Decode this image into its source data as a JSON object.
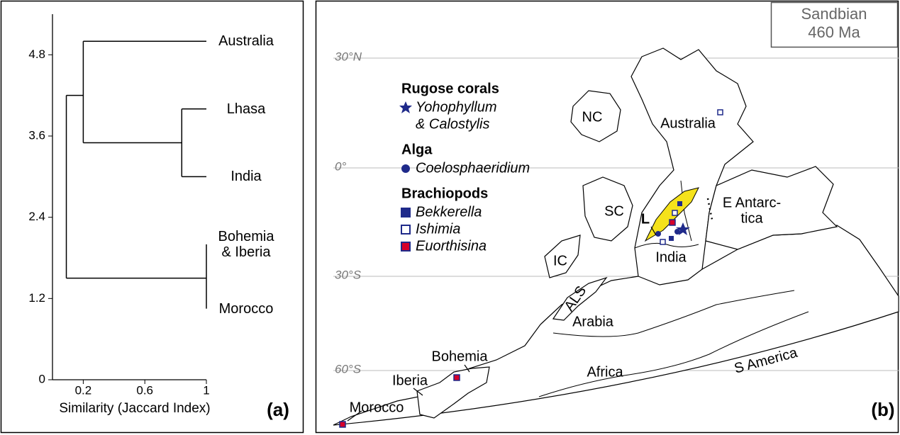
{
  "chart_data": {
    "type": "dendrogram",
    "panel_label": "(a)",
    "xlabel": "Similarity (Jaccard Index)",
    "xlim": [
      0,
      1
    ],
    "xticks": [
      0.2,
      0.6,
      1
    ],
    "ylim": [
      0,
      5.4
    ],
    "yticks": [
      0,
      1.2,
      2.4,
      3.6,
      4.8
    ],
    "color": "#000000",
    "tree": {
      "similarity": 0.09,
      "children": [
        {
          "similarity": 0.2,
          "y": 4.2,
          "children": [
            {
              "label": "Australia",
              "y": 5.0
            },
            {
              "similarity": 0.84,
              "y": 3.5,
              "children": [
                {
                  "label": "Lhasa",
                  "y": 4.0
                },
                {
                  "label": "India",
                  "y": 3.0
                }
              ]
            }
          ]
        },
        {
          "similarity": 1,
          "y": 1.5,
          "children": [
            {
              "label": "Bohemia\n& Iberia",
              "y": 2.0
            },
            {
              "label": "Morocco",
              "y": 1.05
            }
          ]
        }
      ]
    }
  },
  "map": {
    "panel_label": "(b)",
    "stage": "Sandbian",
    "age": "460 Ma",
    "latitudes": [
      "30°N",
      "0°",
      "30°S",
      "60°S"
    ],
    "legend": [
      {
        "group": "Rugose corals",
        "items": [
          {
            "symbol": "star",
            "color": "#1f2a8a",
            "lines": [
              "Yohophyllum",
              "& Calostylis"
            ]
          }
        ]
      },
      {
        "group": "Alga",
        "items": [
          {
            "symbol": "circle",
            "color": "#1f2a8a",
            "lines": [
              "Coelosphaeridium"
            ]
          }
        ]
      },
      {
        "group": "Brachiopods",
        "items": [
          {
            "symbol": "square",
            "color": "#1f2a8a",
            "lines": [
              "Bekkerella"
            ]
          },
          {
            "symbol": "open-square",
            "color": "#1f2a8a",
            "lines": [
              "Ishimia"
            ]
          },
          {
            "symbol": "red-square",
            "color": "#1f2a8a",
            "lines": [
              "Euorthisina"
            ]
          }
        ]
      }
    ],
    "places": [
      [
        "NC"
      ],
      [
        "Australia"
      ],
      [
        "SC"
      ],
      [
        "L"
      ],
      [
        "India"
      ],
      [
        "E Antarc-",
        "tica"
      ],
      [
        "IC"
      ],
      [
        "ALS"
      ],
      [
        "Arabia"
      ],
      [
        "Bohemia"
      ],
      [
        "Iberia"
      ],
      [
        "Africa"
      ],
      [
        "S America"
      ],
      [
        "Morocco"
      ]
    ]
  }
}
